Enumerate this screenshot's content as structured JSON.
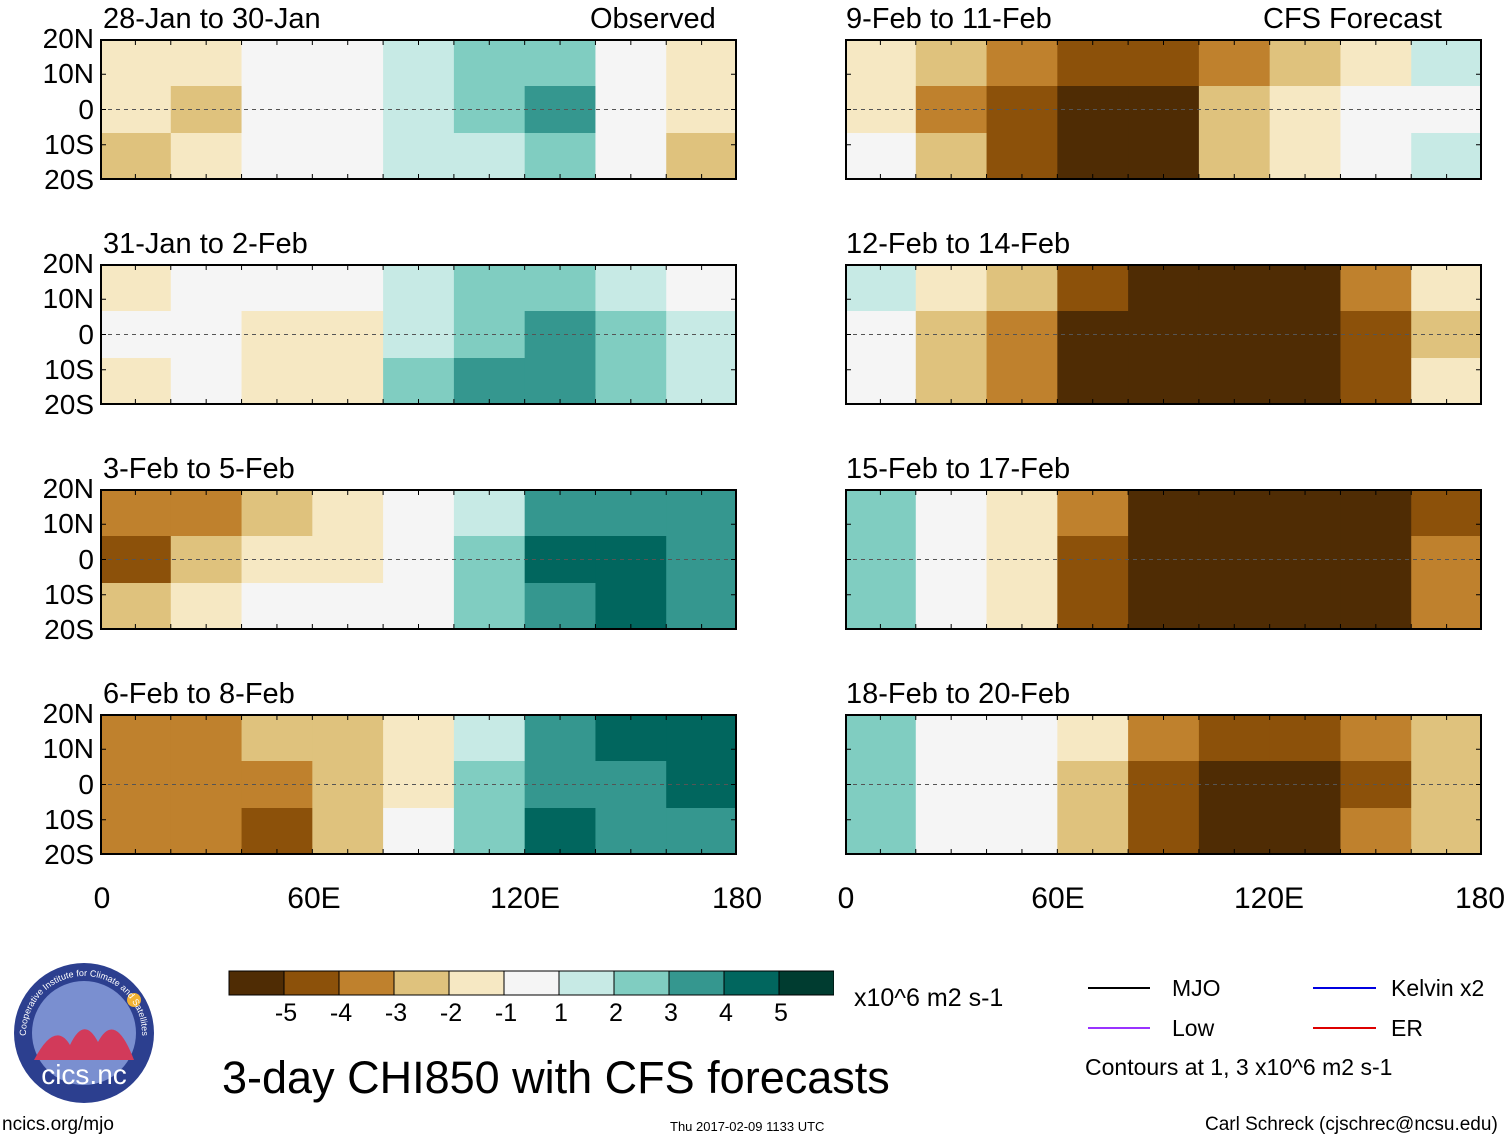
{
  "title": "3-day CHI850 with CFS forecasts",
  "footer": {
    "url": "ncics.org/mjo",
    "timestamp": "Thu 2017-02-09 1133 UTC",
    "author": "Carl Schreck (cjschrec@ncsu.edu)"
  },
  "logo": {
    "ring_text": "Cooperative Institute for Climate and Satellites",
    "wordmark": "cics.nc"
  },
  "observed_label": "Observed",
  "forecast_label": "CFS Forecast",
  "units": "x10^6 m2 s-1",
  "contour_note": "Contours at 1, 3 x10^6 m2 s-1",
  "legend": [
    {
      "label": "MJO",
      "color": "#000000"
    },
    {
      "label": "Kelvin x2",
      "color": "#0000e0"
    },
    {
      "label": "Low",
      "color": "#9933ff"
    },
    {
      "label": "ER",
      "color": "#dd0000"
    }
  ],
  "chart_data": {
    "type": "heatmap",
    "variable": "CHI850 anomaly",
    "lat_tick_labels": [
      "20N",
      "10N",
      "0",
      "10S",
      "20S"
    ],
    "lon_tick_labels": [
      "0",
      "60E",
      "120E",
      "180"
    ],
    "lat_range": [
      -20,
      20
    ],
    "lon_range": [
      0,
      180
    ],
    "colorbar": {
      "ticks": [
        "-5",
        "-4",
        "-3",
        "-2",
        "-1",
        "1",
        "2",
        "3",
        "4",
        "5"
      ],
      "colors": [
        "#4f2c04",
        "#8c510a",
        "#bf812d",
        "#dfc27d",
        "#f6e8c3",
        "#f5f5f5",
        "#c7eae5",
        "#80cdc1",
        "#35978f",
        "#01665e",
        "#003c30"
      ]
    },
    "panels": [
      {
        "period": "28-Jan to 30-Jan",
        "source": "Observed",
        "anomaly": [
          [
            "-1",
            "-1",
            "0",
            "0",
            "1",
            "2",
            "2",
            "0",
            "-1"
          ],
          [
            "-1",
            "-2",
            "0",
            "0",
            "1",
            "2",
            "3",
            "0",
            "-1"
          ],
          [
            "-2",
            "-1",
            "0",
            "0",
            "1",
            "1",
            "2",
            "0",
            "-2"
          ]
        ]
      },
      {
        "period": "31-Jan to 2-Feb",
        "source": "Observed",
        "anomaly": [
          [
            "-1",
            "0",
            "0",
            "0",
            "1",
            "2",
            "2",
            "1",
            "0"
          ],
          [
            "0",
            "0",
            "-1",
            "-1",
            "1",
            "2",
            "3",
            "2",
            "1"
          ],
          [
            "-1",
            "0",
            "-1",
            "-1",
            "2",
            "3",
            "3",
            "2",
            "1"
          ]
        ]
      },
      {
        "period": "3-Feb to 5-Feb",
        "source": "Observed",
        "anomaly": [
          [
            "-3",
            "-3",
            "-2",
            "-1",
            "0",
            "1",
            "3",
            "3",
            "3"
          ],
          [
            "-4",
            "-2",
            "-1",
            "-1",
            "0",
            "2",
            "4",
            "4",
            "3"
          ],
          [
            "-2",
            "-1",
            "0",
            "0",
            "0",
            "2",
            "3",
            "4",
            "3"
          ]
        ]
      },
      {
        "period": "6-Feb to 8-Feb",
        "source": "Observed",
        "anomaly": [
          [
            "-3",
            "-3",
            "-2",
            "-2",
            "-1",
            "1",
            "3",
            "4",
            "4"
          ],
          [
            "-3",
            "-3",
            "-3",
            "-2",
            "-1",
            "2",
            "3",
            "3",
            "4"
          ],
          [
            "-3",
            "-3",
            "-4",
            "-2",
            "0",
            "2",
            "4",
            "3",
            "3"
          ]
        ]
      },
      {
        "period": "9-Feb to 11-Feb",
        "source": "CFS Forecast",
        "anomaly": [
          [
            "-1",
            "-2",
            "-3",
            "-4",
            "-4",
            "-3",
            "-2",
            "-1",
            "1"
          ],
          [
            "-1",
            "-3",
            "-4",
            "-5",
            "-5",
            "-2",
            "-1",
            "0",
            "0"
          ],
          [
            "0",
            "-2",
            "-4",
            "-5",
            "-5",
            "-2",
            "-1",
            "0",
            "1"
          ]
        ]
      },
      {
        "period": "12-Feb to 14-Feb",
        "source": "CFS Forecast",
        "anomaly": [
          [
            "1",
            "-1",
            "-2",
            "-4",
            "-5",
            "-5",
            "-5",
            "-3",
            "-1"
          ],
          [
            "0",
            "-2",
            "-3",
            "-5",
            "-5",
            "-5",
            "-5",
            "-4",
            "-2"
          ],
          [
            "0",
            "-2",
            "-3",
            "-5",
            "-5",
            "-5",
            "-5",
            "-4",
            "-1"
          ]
        ]
      },
      {
        "period": "15-Feb to 17-Feb",
        "source": "CFS Forecast",
        "anomaly": [
          [
            "2",
            "0",
            "-1",
            "-3",
            "-5",
            "-5",
            "-5",
            "-5",
            "-4"
          ],
          [
            "2",
            "0",
            "-1",
            "-4",
            "-5",
            "-5",
            "-5",
            "-5",
            "-3"
          ],
          [
            "2",
            "0",
            "-1",
            "-4",
            "-5",
            "-5",
            "-5",
            "-5",
            "-3"
          ]
        ]
      },
      {
        "period": "18-Feb to 20-Feb",
        "source": "CFS Forecast",
        "anomaly": [
          [
            "2",
            "0",
            "0",
            "-1",
            "-3",
            "-4",
            "-4",
            "-3",
            "-2"
          ],
          [
            "2",
            "0",
            "0",
            "-2",
            "-4",
            "-5",
            "-5",
            "-4",
            "-2"
          ],
          [
            "2",
            "0",
            "0",
            "-2",
            "-4",
            "-5",
            "-5",
            "-3",
            "-2"
          ]
        ]
      }
    ]
  }
}
